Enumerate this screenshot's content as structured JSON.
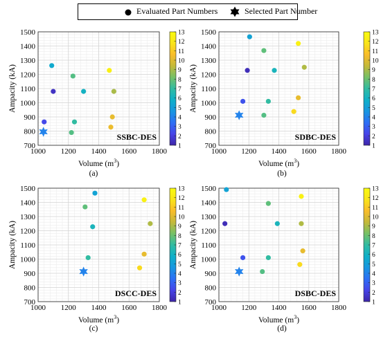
{
  "legend": {
    "evaluated_label": "Evaluated Part Numbers",
    "selected_label": "Selected Part Number"
  },
  "colormap": {
    "stops": [
      "#3e26a8",
      "#4744e8",
      "#2d6ff5",
      "#1896e0",
      "#0fb0c8",
      "#32bca2",
      "#76c066",
      "#c4b93a",
      "#f9bd2a",
      "#f9e41a",
      "#f9fb0e"
    ],
    "ticks": [
      1,
      2,
      3,
      4,
      5,
      6,
      7,
      8,
      9,
      10,
      11,
      12,
      13
    ],
    "range": [
      1,
      13
    ]
  },
  "chart_data": [
    {
      "type": "scatter",
      "title": "SSBC-DES",
      "caption": "(a)",
      "xlabel": "Volume (m",
      "xlabel_sup": "3",
      "xlabel_end": ")",
      "ylabel": "Ampacity (kA)",
      "xlim": [
        1000,
        1800
      ],
      "ylim": [
        700,
        1500
      ],
      "xticks": [
        1000,
        1200,
        1400,
        1600,
        1800
      ],
      "yticks": [
        700,
        800,
        900,
        1000,
        1100,
        1200,
        1300,
        1400,
        1500
      ],
      "points": [
        {
          "x": 1090,
          "y": 1262,
          "c": 5.5
        },
        {
          "x": 1230,
          "y": 1188,
          "c": 7.6
        },
        {
          "x": 1470,
          "y": 1228,
          "c": 12.4
        },
        {
          "x": 1100,
          "y": 1080,
          "c": 1.5
        },
        {
          "x": 1300,
          "y": 1080,
          "c": 6.0
        },
        {
          "x": 1500,
          "y": 1080,
          "c": 9.0
        },
        {
          "x": 1040,
          "y": 865,
          "c": 2.3
        },
        {
          "x": 1240,
          "y": 865,
          "c": 7.0
        },
        {
          "x": 1490,
          "y": 900,
          "c": 10.2
        },
        {
          "x": 1220,
          "y": 790,
          "c": 7.6
        },
        {
          "x": 1480,
          "y": 828,
          "c": 10.3
        }
      ],
      "selected": {
        "x": 1035,
        "y": 795,
        "c": 4.0
      }
    },
    {
      "type": "scatter",
      "title": "SDBC-DES",
      "caption": "(b)",
      "xlabel": "Volume (m",
      "xlabel_sup": "3",
      "xlabel_end": ")",
      "ylabel": "Ampacity (kA)",
      "xlim": [
        1000,
        1800
      ],
      "ylim": [
        700,
        1500
      ],
      "xticks": [
        1000,
        1200,
        1400,
        1600,
        1800
      ],
      "yticks": [
        700,
        800,
        900,
        1000,
        1100,
        1200,
        1300,
        1400,
        1500
      ],
      "points": [
        {
          "x": 1205,
          "y": 1465,
          "c": 5.2
        },
        {
          "x": 1530,
          "y": 1418,
          "c": 12.5
        },
        {
          "x": 1300,
          "y": 1368,
          "c": 7.8
        },
        {
          "x": 1190,
          "y": 1228,
          "c": 1.3
        },
        {
          "x": 1370,
          "y": 1228,
          "c": 6.2
        },
        {
          "x": 1570,
          "y": 1250,
          "c": 9.1
        },
        {
          "x": 1160,
          "y": 1010,
          "c": 2.6
        },
        {
          "x": 1330,
          "y": 1010,
          "c": 7.0
        },
        {
          "x": 1530,
          "y": 1035,
          "c": 10.2
        },
        {
          "x": 1300,
          "y": 912,
          "c": 7.6
        },
        {
          "x": 1500,
          "y": 938,
          "c": 11.5
        }
      ],
      "selected": {
        "x": 1135,
        "y": 912,
        "c": 4.0
      }
    },
    {
      "type": "scatter",
      "title": "DSCC-DES",
      "caption": "(c)",
      "xlabel": "Volume (m",
      "xlabel_sup": "3",
      "xlabel_end": ")",
      "ylabel": "Ampacity (kA)",
      "xlim": [
        1000,
        1800
      ],
      "ylim": [
        700,
        1500
      ],
      "xticks": [
        1000,
        1200,
        1400,
        1600,
        1800
      ],
      "yticks": [
        700,
        800,
        900,
        1000,
        1100,
        1200,
        1300,
        1400,
        1500
      ],
      "points": [
        {
          "x": 1375,
          "y": 1465,
          "c": 5.2
        },
        {
          "x": 1700,
          "y": 1418,
          "c": 12.5
        },
        {
          "x": 1310,
          "y": 1368,
          "c": 7.8
        },
        {
          "x": 1360,
          "y": 1228,
          "c": 6.2
        },
        {
          "x": 1740,
          "y": 1250,
          "c": 9.1
        },
        {
          "x": 1330,
          "y": 1010,
          "c": 7.0
        },
        {
          "x": 1700,
          "y": 1035,
          "c": 10.2
        },
        {
          "x": 1670,
          "y": 938,
          "c": 11.5
        }
      ],
      "selected": {
        "x": 1300,
        "y": 912,
        "c": 4.0
      }
    },
    {
      "type": "scatter",
      "title": "DSBC-DES",
      "caption": "(d)",
      "xlabel": "Volume (m",
      "xlabel_sup": "3",
      "xlabel_end": ")",
      "ylabel": "Ampacity (kA)",
      "xlim": [
        1000,
        1800
      ],
      "ylim": [
        700,
        1500
      ],
      "xticks": [
        1000,
        1200,
        1400,
        1600,
        1800
      ],
      "yticks": [
        700,
        800,
        900,
        1000,
        1100,
        1200,
        1300,
        1400,
        1500
      ],
      "points": [
        {
          "x": 1050,
          "y": 1490,
          "c": 5.2
        },
        {
          "x": 1550,
          "y": 1442,
          "c": 12.5
        },
        {
          "x": 1330,
          "y": 1392,
          "c": 7.8
        },
        {
          "x": 1040,
          "y": 1250,
          "c": 1.3
        },
        {
          "x": 1390,
          "y": 1250,
          "c": 6.2
        },
        {
          "x": 1550,
          "y": 1250,
          "c": 9.1
        },
        {
          "x": 1160,
          "y": 1010,
          "c": 2.6
        },
        {
          "x": 1330,
          "y": 1010,
          "c": 7.0
        },
        {
          "x": 1560,
          "y": 1058,
          "c": 10.2
        },
        {
          "x": 1290,
          "y": 912,
          "c": 7.6
        },
        {
          "x": 1540,
          "y": 962,
          "c": 11.5
        }
      ],
      "selected": {
        "x": 1135,
        "y": 912,
        "c": 4.0
      }
    }
  ]
}
